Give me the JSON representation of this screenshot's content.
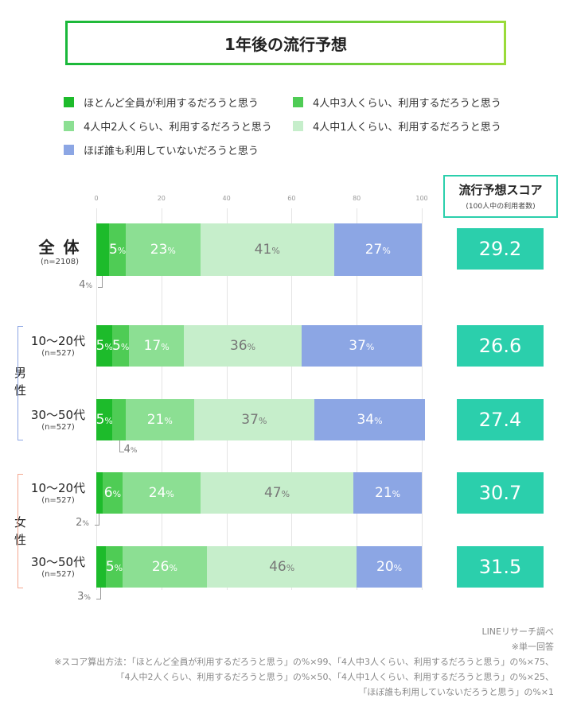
{
  "title": "1年後の流行予想",
  "colors": {
    "all": "#1dbb2b",
    "three": "#4fcc55",
    "two": "#8cdf93",
    "one": "#c6eecb",
    "none": "#8ca6e4",
    "score": "#2bcfac"
  },
  "chart_data": {
    "type": "bar",
    "orientation": "horizontal",
    "stacked": true,
    "xlim": [
      0,
      100
    ],
    "xticks": [
      "0",
      "20",
      "40",
      "60",
      "80",
      "100"
    ],
    "grid": true,
    "legend": "top",
    "series": [
      {
        "name": "ほとんど全員が利用するだろうと思う",
        "color": "#1dbb2b"
      },
      {
        "name": "4人中3人くらい、利用するだろうと思う",
        "color": "#4fcc55"
      },
      {
        "name": "4人中2人くらい、利用するだろうと思う",
        "color": "#8cdf93"
      },
      {
        "name": "4人中1人くらい、利用するだろうと思う",
        "color": "#c6eecb"
      },
      {
        "name": "ほぼ誰も利用していないだろうと思う",
        "color": "#8ca6e4"
      }
    ],
    "rows": [
      {
        "label": "全 体",
        "n": "(n=2108)",
        "values": [
          4,
          5,
          23,
          41,
          27
        ],
        "score": "29.2"
      },
      {
        "label": "10〜20代",
        "n": "(n=527)",
        "group": "男性",
        "values": [
          5,
          5,
          17,
          36,
          37
        ],
        "score": "26.6"
      },
      {
        "label": "30〜50代",
        "n": "(n=527)",
        "group": "男性",
        "values": [
          5,
          4,
          21,
          37,
          34
        ],
        "score": "27.4"
      },
      {
        "label": "10〜20代",
        "n": "(n=527)",
        "group": "女性",
        "values": [
          2,
          6,
          24,
          47,
          21
        ],
        "score": "30.7"
      },
      {
        "label": "30〜50代",
        "n": "(n=527)",
        "group": "女性",
        "values": [
          3,
          5,
          26,
          46,
          20
        ],
        "score": "31.5"
      }
    ],
    "unit": "%"
  },
  "groups": {
    "male": "男\n性",
    "female": "女\n性"
  },
  "score_header": {
    "title": "流行予想スコア",
    "sub": "(100人中の利用者数)"
  },
  "notes": [
    "LINEリサーチ調べ",
    "※単一回答",
    "※スコア算出方法：「ほとんど全員が利用するだろうと思う」の%×99、「4人中3人くらい、利用するだろうと思う」の%×75、",
    "「4人中2人くらい、利用するだろうと思う」の%×50、「4人中1人くらい、利用するだろうと思う」の%×25、",
    "「ほぼ誰も利用していないだろうと思う」の%×1"
  ]
}
